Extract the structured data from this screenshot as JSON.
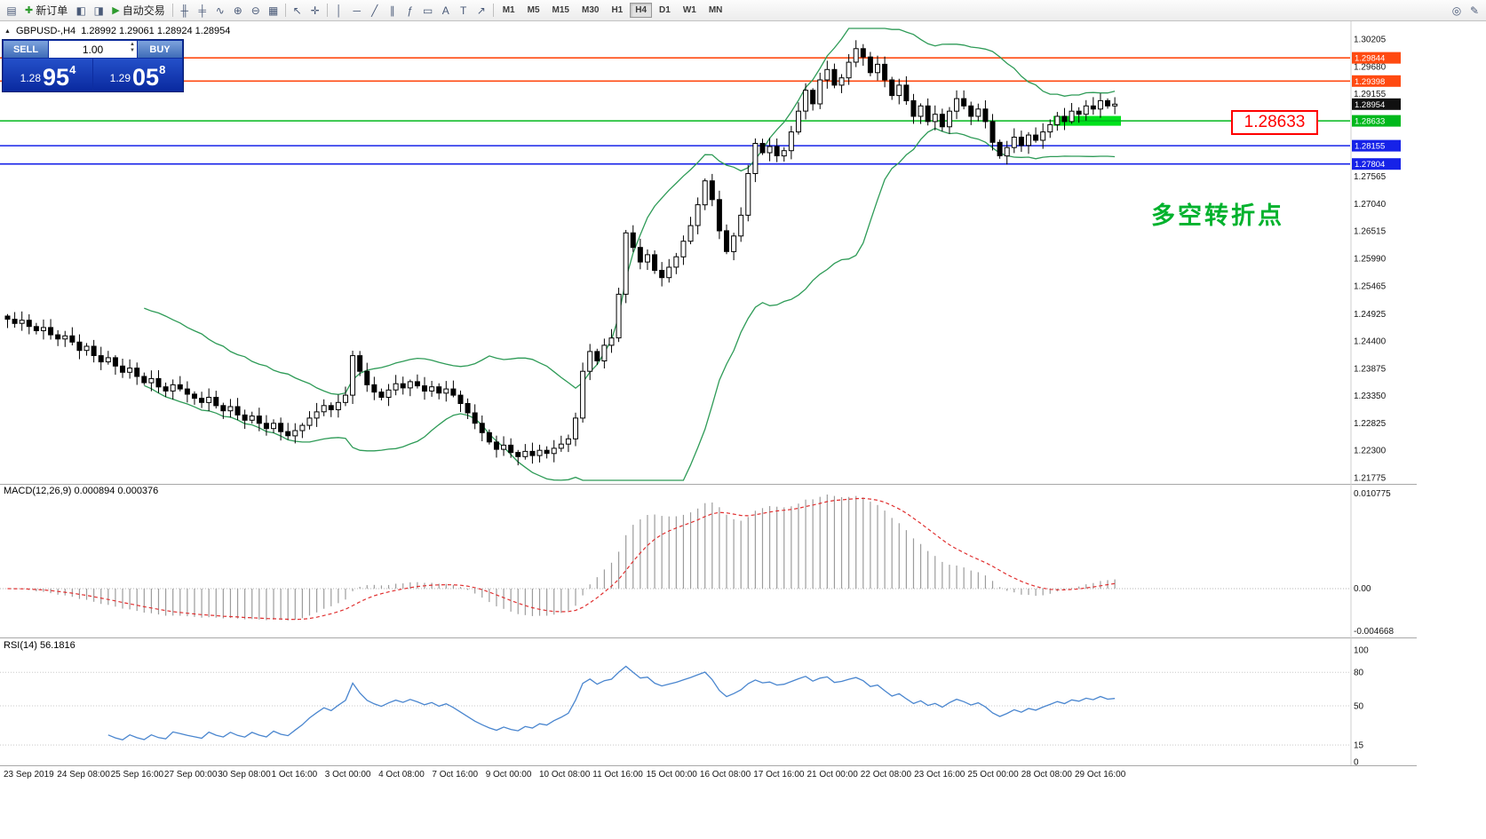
{
  "toolbar": {
    "items": [
      {
        "type": "icon",
        "name": "chart-window-icon",
        "glyph": "▤"
      },
      {
        "type": "button",
        "name": "new-order-button",
        "icon_name": "new-order-icon",
        "icon": "✚",
        "label": "新订单"
      },
      {
        "type": "icon",
        "name": "market-watch-icon",
        "glyph": "◧"
      },
      {
        "type": "icon",
        "name": "navigator-icon",
        "glyph": "◨"
      },
      {
        "type": "button",
        "name": "autotrade-button",
        "icon_name": "autotrade-play-icon",
        "icon": "▶",
        "label": "自动交易"
      },
      {
        "type": "sep"
      },
      {
        "type": "icon",
        "name": "bar-chart-icon",
        "glyph": "╫"
      },
      {
        "type": "icon",
        "name": "candlestick-chart-icon",
        "glyph": "╪"
      },
      {
        "type": "icon",
        "name": "line-chart-icon",
        "glyph": "∿"
      },
      {
        "type": "icon",
        "name": "zoom-in-icon",
        "glyph": "⊕"
      },
      {
        "type": "icon",
        "name": "zoom-out-icon",
        "glyph": "⊖"
      },
      {
        "type": "icon",
        "name": "tile-windows-icon",
        "glyph": "▦"
      },
      {
        "type": "sep"
      },
      {
        "type": "icon",
        "name": "cursor-icon",
        "glyph": "↖"
      },
      {
        "type": "icon",
        "name": "crosshair-icon",
        "glyph": "✛"
      },
      {
        "type": "sep"
      },
      {
        "type": "icon",
        "name": "vertical-line-icon",
        "glyph": "│"
      },
      {
        "type": "icon",
        "name": "horizontal-line-icon",
        "glyph": "─"
      },
      {
        "type": "icon",
        "name": "trendline-icon",
        "glyph": "╱"
      },
      {
        "type": "icon",
        "name": "channel-icon",
        "glyph": "∥"
      },
      {
        "type": "icon",
        "name": "fibonacci-icon",
        "glyph": "ƒ"
      },
      {
        "type": "icon",
        "name": "shapes-icon",
        "glyph": "▭"
      },
      {
        "type": "icon",
        "name": "text-icon",
        "glyph": "A"
      },
      {
        "type": "icon",
        "name": "text-label-icon",
        "glyph": "T"
      },
      {
        "type": "icon",
        "name": "arrows-icon",
        "glyph": "↗"
      },
      {
        "type": "sep"
      },
      {
        "type": "timeframes"
      },
      {
        "type": "spacer"
      },
      {
        "type": "icon",
        "name": "search-icon",
        "glyph": "◎"
      },
      {
        "type": "icon",
        "name": "edit-icon",
        "glyph": "✎"
      }
    ],
    "timeframes": [
      "M1",
      "M5",
      "M15",
      "M30",
      "H1",
      "H4",
      "D1",
      "W1",
      "MN"
    ],
    "active_timeframe": "H4"
  },
  "chart_header": {
    "expander_glyph": "▲",
    "symbol_period": "GBPUSD-,H4",
    "ohlc_text": "1.28992 1.29061 1.28924 1.28954"
  },
  "trade_panel": {
    "sell_label": "SELL",
    "buy_label": "BUY",
    "volume": "1.00",
    "sell_price": {
      "prefix": "1.28",
      "big": "95",
      "sup": "4"
    },
    "buy_price": {
      "prefix": "1.29",
      "big": "05",
      "sup": "8"
    }
  },
  "levels": [
    {
      "price": "1.29844",
      "color": "#ff4a11",
      "line": true
    },
    {
      "price": "1.29398",
      "color": "#ff4a11",
      "line": true
    },
    {
      "price": "1.28954",
      "color": "#101010",
      "line": false,
      "current": true
    },
    {
      "price": "1.28633",
      "color": "#00b81c",
      "line": true,
      "highlight": true
    },
    {
      "price": "1.28155",
      "color": "#1622e8",
      "line": true
    },
    {
      "price": "1.27804",
      "color": "#1622e8",
      "line": true
    }
  ],
  "price_axis": [
    "1.30205",
    "1.29680",
    "1.29155",
    "1.27565",
    "1.27040",
    "1.26515",
    "1.25990",
    "1.25465",
    "1.24925",
    "1.24400",
    "1.23875",
    "1.23350",
    "1.22825",
    "1.22300",
    "1.21775"
  ],
  "time_axis": [
    "23 Sep 2019",
    "24 Sep 08:00",
    "25 Sep 16:00",
    "27 Sep 00:00",
    "30 Sep 08:00",
    "1 Oct 16:00",
    "3 Oct 00:00",
    "4 Oct 08:00",
    "7 Oct 16:00",
    "9 Oct 00:00",
    "10 Oct 08:00",
    "11 Oct 16:00",
    "15 Oct 00:00",
    "16 Oct 08:00",
    "17 Oct 16:00",
    "21 Oct 00:00",
    "22 Oct 08:00",
    "23 Oct 16:00",
    "25 Oct 00:00",
    "28 Oct 08:00",
    "29 Oct 16:00"
  ],
  "macd": {
    "label": "MACD(12,26,9) 0.000894 0.000376",
    "axis_max": "0.010775",
    "axis_zero": "0.00",
    "axis_min": "-0.004668"
  },
  "rsi": {
    "label": "RSI(14) 56.1816",
    "axis": [
      "100",
      "80",
      "50",
      "15",
      "0"
    ],
    "levels": [
      80,
      50,
      15
    ]
  },
  "annotations": {
    "price_box": "1.28633",
    "turning_point_note": "多空转折点"
  },
  "chart_data": {
    "type": "candlestick",
    "symbol": "GBPUSD-",
    "timeframe": "H4",
    "bollinger": {
      "period": 20,
      "deviation": 2
    },
    "indicators": [
      "MACD(12,26,9)",
      "RSI(14)"
    ],
    "closes": [
      1.2482,
      1.2474,
      1.248,
      1.2468,
      1.246,
      1.2466,
      1.2452,
      1.2444,
      1.245,
      1.2438,
      1.2422,
      1.243,
      1.2412,
      1.24,
      1.2408,
      1.2392,
      1.238,
      1.2388,
      1.2372,
      1.236,
      1.2368,
      1.2352,
      1.2344,
      1.2356,
      1.2348,
      1.2338,
      1.233,
      1.2322,
      1.2332,
      1.2316,
      1.2306,
      1.2314,
      1.2298,
      1.2288,
      1.2296,
      1.2282,
      1.2272,
      1.2282,
      1.2266,
      1.2258,
      1.2268,
      1.2278,
      1.2292,
      1.2304,
      1.2316,
      1.2308,
      1.2322,
      1.2336,
      1.2412,
      1.2382,
      1.2356,
      1.2342,
      1.2332,
      1.2346,
      1.2358,
      1.235,
      1.2362,
      1.2354,
      1.2344,
      1.2352,
      1.234,
      1.2348,
      1.2336,
      1.232,
      1.2302,
      1.2282,
      1.2264,
      1.2246,
      1.2232,
      1.224,
      1.2226,
      1.2218,
      1.2228,
      1.222,
      1.223,
      1.2224,
      1.2234,
      1.2242,
      1.2252,
      1.2292,
      1.2382,
      1.242,
      1.2402,
      1.2432,
      1.2446,
      1.253,
      1.2648,
      1.262,
      1.2592,
      1.2606,
      1.2576,
      1.2562,
      1.2582,
      1.2602,
      1.2632,
      1.2662,
      1.2702,
      1.2748,
      1.2712,
      1.2652,
      1.2612,
      1.2642,
      1.2682,
      1.2762,
      1.282,
      1.2802,
      1.2814,
      1.2796,
      1.2806,
      1.2842,
      1.2882,
      1.2922,
      1.2896,
      1.2942,
      1.2962,
      1.2932,
      1.2946,
      1.2976,
      1.3002,
      1.2986,
      1.2956,
      1.2972,
      1.2942,
      1.2912,
      1.2932,
      1.2902,
      1.2872,
      1.2892,
      1.2862,
      1.2876,
      1.2852,
      1.2882,
      1.2906,
      1.2892,
      1.2872,
      1.2886,
      1.2862,
      1.2822,
      1.2796,
      1.2812,
      1.2832,
      1.2816,
      1.2836,
      1.2826,
      1.2842,
      1.2856,
      1.2872,
      1.2862,
      1.2882,
      1.2876,
      1.2892,
      1.2886,
      1.2902,
      1.2892,
      1.28954
    ]
  }
}
